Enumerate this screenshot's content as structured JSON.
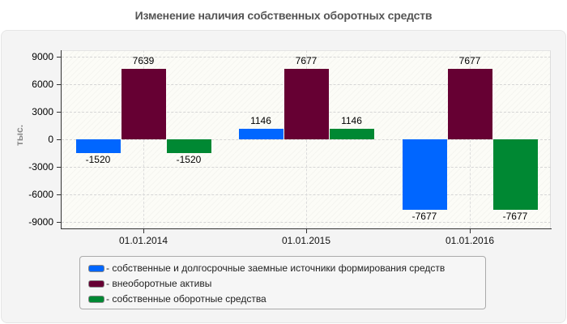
{
  "chart_data": {
    "type": "bar",
    "title": "Изменение наличия собственных оборотных средств",
    "xlabel": "",
    "ylabel": "тыс.",
    "ylim": [
      -9000,
      9000
    ],
    "yticks": [
      9000,
      6000,
      3000,
      0,
      -3000,
      -6000,
      -9000
    ],
    "grid": true,
    "legend_position": "bottom",
    "categories": [
      "01.01.2014",
      "01.01.2015",
      "01.01.2016"
    ],
    "series": [
      {
        "name": "- собственные и долгосрочные заемные источники формирования средств",
        "color": "#0066ff",
        "values": [
          -1520,
          1146,
          -7677
        ]
      },
      {
        "name": "- внеоборотные активы",
        "color": "#660033",
        "values": [
          7639,
          7677,
          7677
        ]
      },
      {
        "name": "- собственные оборотные средства",
        "color": "#008833",
        "values": [
          -1520,
          1146,
          -7677
        ]
      }
    ]
  }
}
